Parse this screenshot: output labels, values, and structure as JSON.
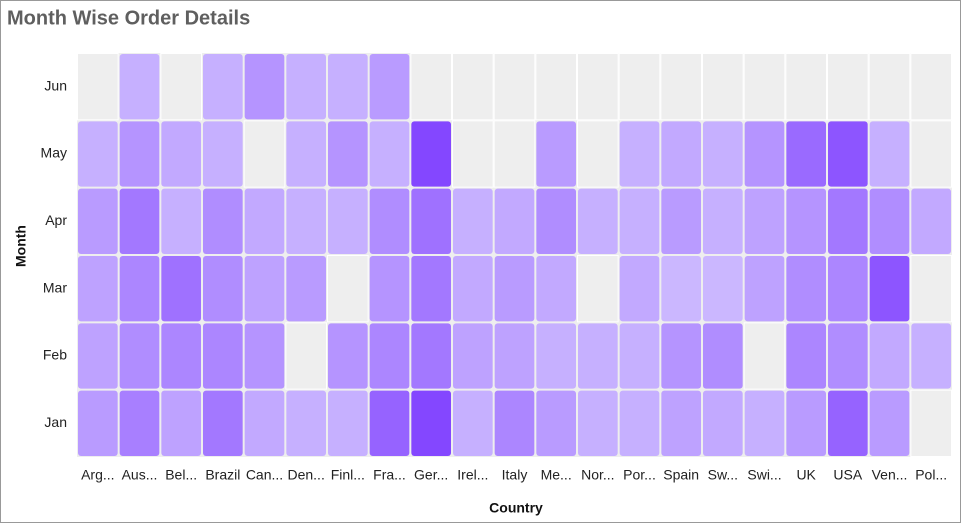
{
  "chart_data": {
    "type": "heatmap",
    "title": "Month Wise Order Details",
    "x_label": "Country",
    "y_label": "Month",
    "x": [
      "Arg...",
      "Aus...",
      "Bel...",
      "Brazil",
      "Can...",
      "Den...",
      "Finl...",
      "Fra...",
      "Ger...",
      "Irel...",
      "Italy",
      "Me...",
      "Nor...",
      "Por...",
      "Spain",
      "Sw...",
      "Swi...",
      "UK",
      "USA",
      "Ven...",
      "Pol..."
    ],
    "y": [
      "Jan",
      "Feb",
      "Mar",
      "Apr",
      "May",
      "Jun"
    ],
    "values": [
      [
        35,
        55,
        30,
        60,
        25,
        20,
        20,
        75,
        95,
        20,
        50,
        35,
        20,
        20,
        30,
        25,
        20,
        35,
        75,
        35,
        null
      ],
      [
        30,
        45,
        50,
        50,
        40,
        null,
        40,
        50,
        60,
        30,
        30,
        20,
        20,
        20,
        40,
        45,
        null,
        50,
        45,
        25,
        20
      ],
      [
        30,
        50,
        65,
        45,
        30,
        35,
        null,
        40,
        60,
        25,
        35,
        25,
        null,
        25,
        15,
        15,
        30,
        45,
        50,
        85,
        null
      ],
      [
        35,
        60,
        20,
        45,
        25,
        20,
        20,
        45,
        65,
        20,
        25,
        45,
        20,
        20,
        35,
        20,
        30,
        40,
        60,
        45,
        25
      ],
      [
        20,
        40,
        25,
        20,
        null,
        20,
        40,
        20,
        95,
        null,
        null,
        35,
        null,
        20,
        25,
        20,
        40,
        70,
        85,
        20,
        null
      ],
      [
        null,
        20,
        null,
        20,
        40,
        20,
        20,
        35,
        null,
        null,
        null,
        null,
        null,
        null,
        null,
        null,
        null,
        null,
        null,
        null,
        null
      ]
    ],
    "zlim": [
      0,
      100
    ],
    "color_range": [
      "#d8ccff",
      "#8040ff"
    ],
    "empty_color": "#eeeeee"
  }
}
